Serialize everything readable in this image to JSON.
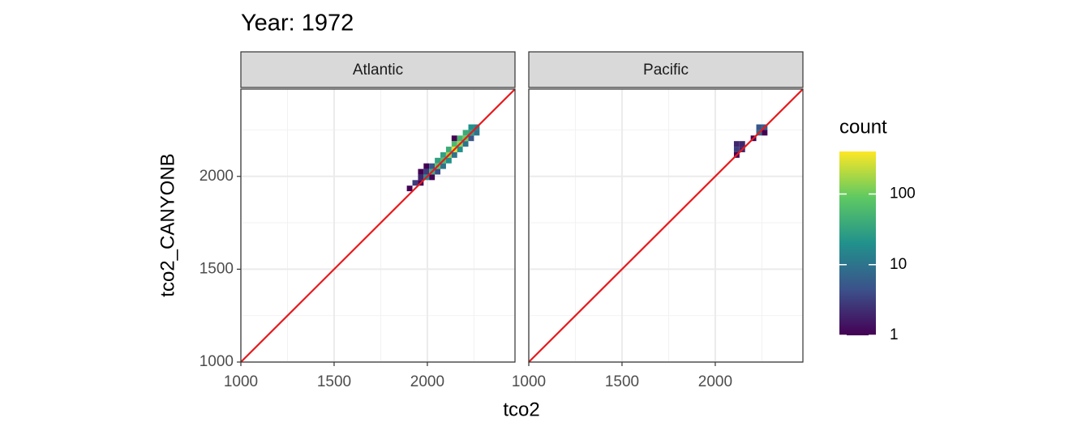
{
  "chart_data": {
    "type": "bin2d",
    "title": "Year: 1972",
    "x_label": "tco2",
    "y_label": "tco2_CANYONB",
    "xlim": [
      1000,
      2470
    ],
    "ylim": [
      1000,
      2470
    ],
    "xticks": [
      1000,
      1500,
      2000
    ],
    "yticks": [
      1000,
      1500,
      2000
    ],
    "minor_ticks": [
      1250,
      1750,
      2250
    ],
    "grid": true,
    "binwidth": 30,
    "reference_line": {
      "slope": 1,
      "intercept": 0,
      "color": "#e8191c"
    },
    "legend": {
      "title": "count",
      "lim": [
        1,
        400
      ],
      "ticks": [
        1,
        10,
        100
      ],
      "log": true,
      "palette": [
        "#440154",
        "#3b528b",
        "#21918c",
        "#5ec962",
        "#fde725"
      ]
    },
    "facets": [
      {
        "name": "Atlantic",
        "x": [
          1905,
          1935,
          1965,
          1965,
          1965,
          1995,
          1995,
          1995,
          2025,
          2025,
          2025,
          2055,
          2055,
          2055,
          2085,
          2085,
          2085,
          2115,
          2115,
          2115,
          2145,
          2145,
          2145,
          2145,
          2175,
          2175,
          2175,
          2205,
          2205,
          2205,
          2235,
          2235,
          2235,
          2265,
          2265
        ],
        "y": [
          1935,
          1965,
          1965,
          1995,
          2025,
          1995,
          2025,
          2055,
          2025,
          2055,
          1995,
          2055,
          2085,
          2025,
          2085,
          2115,
          2055,
          2115,
          2085,
          2145,
          2145,
          2175,
          2115,
          2205,
          2175,
          2205,
          2145,
          2205,
          2235,
          2175,
          2235,
          2265,
          2205,
          2265,
          2235
        ],
        "count": [
          1,
          3,
          1,
          2,
          1,
          20,
          3,
          1,
          40,
          5,
          1,
          80,
          30,
          4,
          60,
          30,
          10,
          150,
          20,
          40,
          300,
          60,
          10,
          1,
          150,
          50,
          20,
          100,
          40,
          10,
          30,
          20,
          5,
          15,
          10
        ]
      },
      {
        "name": "Pacific",
        "x": [
          2115,
          2145,
          2115,
          2145,
          2115,
          2205,
          2235,
          2265,
          2265,
          2235
        ],
        "y": [
          2175,
          2175,
          2145,
          2145,
          2115,
          2205,
          2235,
          2265,
          2235,
          2265
        ],
        "count": [
          2,
          2,
          3,
          2,
          1,
          1,
          8,
          6,
          1,
          5
        ]
      }
    ]
  }
}
